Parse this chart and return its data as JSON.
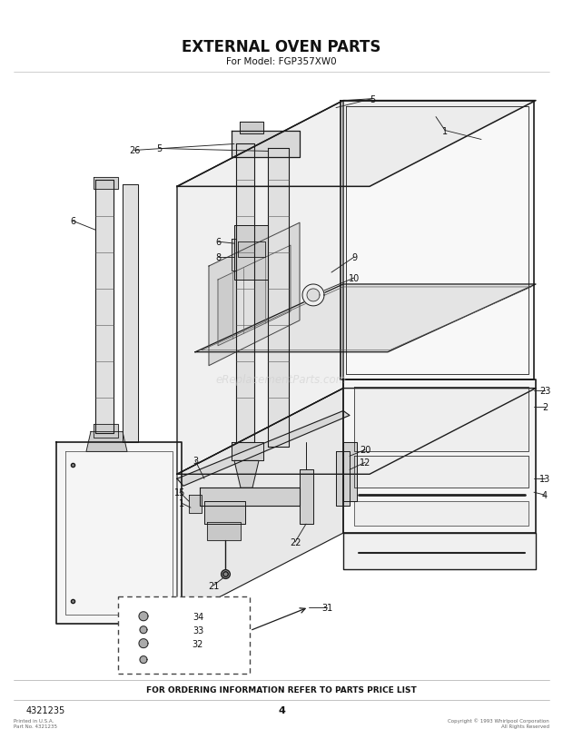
{
  "title": "EXTERNAL OVEN PARTS",
  "subtitle": "For Model: FGP357XW0",
  "footer_text": "FOR ORDERING INFORMATION REFER TO PARTS PRICE LIST",
  "page_number": "4",
  "doc_number": "4321235",
  "bg_color": "#ffffff",
  "title_fontsize": 12,
  "subtitle_fontsize": 7.5,
  "footer_fontsize": 6.5,
  "watermark": "eReplacementParts.com",
  "line_color": "#1a1a1a",
  "fill_light": "#f0f0f0",
  "fill_medium": "#e0e0e0"
}
